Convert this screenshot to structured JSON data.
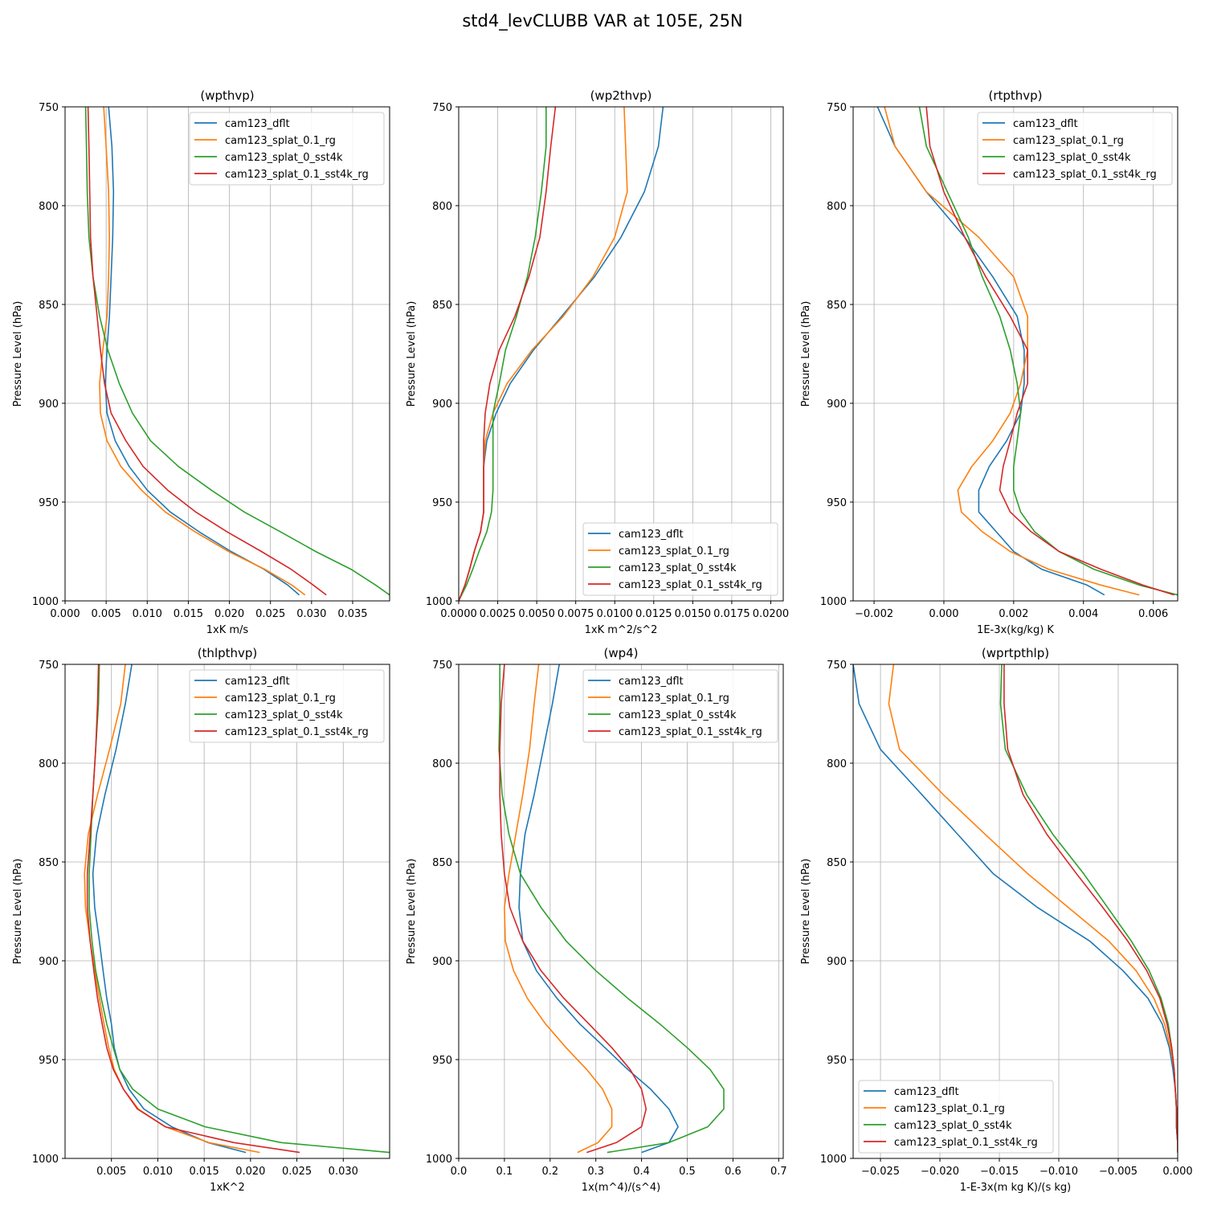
{
  "figure": {
    "title": "std4_levCLUBB VAR at 105E, 25N"
  },
  "series_names": [
    "cam123_dflt",
    "cam123_splat_0.1_rg",
    "cam123_splat_0_sst4k",
    "cam123_splat_0.1_sst4k_rg"
  ],
  "series_colors": [
    "#1f77b4",
    "#ff7f0e",
    "#2ca02c",
    "#d62728"
  ],
  "chart_data": [
    {
      "type": "line",
      "title": "(wpthvp)",
      "xlabel": "1xK m/s",
      "ylabel": "Pressure Level (hPa)",
      "xlim": [
        0,
        0.0395
      ],
      "ylim": [
        1000,
        750
      ],
      "xticks": [
        0,
        0.005,
        0.01,
        0.015,
        0.02,
        0.025,
        0.03,
        0.035
      ],
      "xtick_labels": [
        "0.000",
        "0.005",
        "0.010",
        "0.015",
        "0.020",
        "0.025",
        "0.030",
        "0.035"
      ],
      "yticks": [
        750,
        800,
        850,
        900,
        950,
        1000
      ],
      "legend_loc": "upper right",
      "levels": [
        750,
        770,
        793,
        816,
        836,
        856,
        873,
        890,
        905,
        919,
        932,
        944,
        955,
        965,
        975,
        984,
        992,
        997
      ],
      "series": [
        {
          "name": "cam123_dflt",
          "x": [
            0.0053,
            0.0057,
            0.0059,
            0.0058,
            0.0056,
            0.0054,
            0.0051,
            0.0049,
            0.0051,
            0.0061,
            0.0078,
            0.01,
            0.0128,
            0.0163,
            0.0202,
            0.0242,
            0.0271,
            0.0285
          ]
        },
        {
          "name": "cam123_splat_0.1_rg",
          "x": [
            0.0047,
            0.005,
            0.0053,
            0.0054,
            0.0053,
            0.0051,
            0.0046,
            0.0042,
            0.0043,
            0.0051,
            0.0068,
            0.0093,
            0.0122,
            0.0158,
            0.0199,
            0.0243,
            0.0276,
            0.0292
          ]
        },
        {
          "name": "cam123_splat_0_sst4k",
          "x": [
            0.0025,
            0.0026,
            0.0027,
            0.0029,
            0.0034,
            0.0042,
            0.0052,
            0.0066,
            0.0082,
            0.0104,
            0.0138,
            0.0178,
            0.0218,
            0.0262,
            0.0305,
            0.0348,
            0.0378,
            0.0395
          ]
        },
        {
          "name": "cam123_splat_0.1_sst4k_rg",
          "x": [
            0.0028,
            0.0029,
            0.003,
            0.0031,
            0.0034,
            0.0039,
            0.0043,
            0.0048,
            0.0056,
            0.0074,
            0.0095,
            0.0125,
            0.0159,
            0.0197,
            0.0239,
            0.0275,
            0.0302,
            0.0318
          ]
        }
      ]
    },
    {
      "type": "line",
      "title": "(wp2thvp)",
      "xlabel": "1xK m^2/s^2",
      "ylabel": "Pressure Level (hPa)",
      "xlim": [
        0,
        0.0208
      ],
      "ylim": [
        1000,
        750
      ],
      "xticks": [
        0,
        0.0025,
        0.005,
        0.0075,
        0.01,
        0.0125,
        0.015,
        0.0175,
        0.02
      ],
      "xtick_labels": [
        "0.0000",
        "0.0025",
        "0.0050",
        "0.0075",
        "0.0100",
        "0.0125",
        "0.0150",
        "0.0175",
        "0.0200"
      ],
      "yticks": [
        750,
        800,
        850,
        900,
        950,
        1000
      ],
      "legend_loc": "lower right",
      "levels": [
        750,
        770,
        793,
        816,
        836,
        856,
        873,
        890,
        905,
        919,
        932,
        944,
        955,
        965,
        975,
        984,
        992,
        1000
      ],
      "series": [
        {
          "name": "cam123_dflt",
          "x": [
            0.0131,
            0.0128,
            0.0119,
            0.0104,
            0.0087,
            0.0066,
            0.0048,
            0.0033,
            0.0024,
            0.0018,
            0.0016,
            0.0016,
            0.0016,
            0.0014,
            0.001,
            0.0007,
            0.0004,
            0
          ]
        },
        {
          "name": "cam123_splat_0.1_rg",
          "x": [
            0.0106,
            0.0107,
            0.0108,
            0.01,
            0.0086,
            0.0067,
            0.0047,
            0.0031,
            0.0022,
            0.0017,
            0.0016,
            0.0016,
            0.0016,
            0.0014,
            0.001,
            0.0007,
            0.0004,
            0
          ]
        },
        {
          "name": "cam123_splat_0_sst4k",
          "x": [
            0.0056,
            0.0056,
            0.0053,
            0.0049,
            0.0044,
            0.0037,
            0.003,
            0.0026,
            0.0022,
            0.0022,
            0.0022,
            0.0022,
            0.0021,
            0.0018,
            0.0013,
            0.0009,
            0.0005,
            0
          ]
        },
        {
          "name": "cam123_splat_0.1_sst4k_rg",
          "x": [
            0.0062,
            0.0059,
            0.0056,
            0.0052,
            0.0045,
            0.0036,
            0.0026,
            0.002,
            0.0017,
            0.0016,
            0.0016,
            0.0016,
            0.0016,
            0.0014,
            0.001,
            0.0007,
            0.0004,
            0
          ]
        }
      ]
    },
    {
      "type": "line",
      "title": "(rtpthvp)",
      "xlabel": "1E-3x(kg/kg) K",
      "ylabel": "Pressure Level (hPa)",
      "xlim": [
        -0.0026,
        0.0067
      ],
      "ylim": [
        1000,
        750
      ],
      "xticks": [
        -0.002,
        0,
        0.002,
        0.004,
        0.006
      ],
      "xtick_labels": [
        "−0.002",
        "0.000",
        "0.002",
        "0.004",
        "0.006"
      ],
      "yticks": [
        750,
        800,
        850,
        900,
        950,
        1000
      ],
      "legend_loc": "upper right",
      "levels": [
        750,
        770,
        793,
        816,
        836,
        856,
        873,
        890,
        905,
        919,
        932,
        944,
        955,
        965,
        975,
        984,
        992,
        997
      ],
      "series": [
        {
          "name": "cam123_dflt",
          "x": [
            -0.0019,
            -0.0014,
            -0.0005,
            0.0006,
            0.0014,
            0.0021,
            0.0023,
            0.0023,
            0.0022,
            0.0018,
            0.0013,
            0.001,
            0.001,
            0.0015,
            0.002,
            0.0028,
            0.0041,
            0.0046
          ]
        },
        {
          "name": "cam123_splat_0.1_rg",
          "x": [
            -0.0017,
            -0.0014,
            -0.0005,
            0.001,
            0.002,
            0.0024,
            0.0024,
            0.0022,
            0.0019,
            0.0014,
            0.0008,
            0.0004,
            0.0005,
            0.0011,
            0.0019,
            0.003,
            0.0045,
            0.0056
          ]
        },
        {
          "name": "cam123_splat_0_sst4k",
          "x": [
            -0.0007,
            -0.0005,
            0.0001,
            0.0007,
            0.0011,
            0.0016,
            0.0019,
            0.0021,
            0.0022,
            0.0021,
            0.002,
            0.002,
            0.0022,
            0.0026,
            0.0033,
            0.0043,
            0.0056,
            0.0067
          ]
        },
        {
          "name": "cam123_splat_0.1_sst4k_rg",
          "x": [
            -0.0005,
            -0.0004,
            0.0,
            0.0006,
            0.0012,
            0.0019,
            0.0024,
            0.0024,
            0.0021,
            0.0019,
            0.0017,
            0.0016,
            0.0019,
            0.0025,
            0.0033,
            0.0045,
            0.0057,
            0.0066
          ]
        }
      ]
    },
    {
      "type": "line",
      "title": "(thlpthvp)",
      "xlabel": "1xK^2",
      "ylabel": "Pressure Level (hPa)",
      "xlim": [
        0,
        0.035
      ],
      "ylim": [
        1000,
        750
      ],
      "xticks": [
        0.005,
        0.01,
        0.015,
        0.02,
        0.025,
        0.03
      ],
      "xtick_labels": [
        "0.005",
        "0.010",
        "0.015",
        "0.020",
        "0.025",
        "0.030"
      ],
      "yticks": [
        750,
        800,
        850,
        900,
        950,
        1000
      ],
      "legend_loc": "upper right",
      "levels": [
        750,
        770,
        793,
        816,
        836,
        856,
        873,
        890,
        905,
        919,
        932,
        944,
        955,
        965,
        975,
        984,
        992,
        997
      ],
      "series": [
        {
          "name": "cam123_dflt",
          "x": [
            0.0072,
            0.0065,
            0.0055,
            0.0043,
            0.0034,
            0.003,
            0.0032,
            0.0037,
            0.0041,
            0.0045,
            0.005,
            0.0053,
            0.0059,
            0.0069,
            0.0085,
            0.0115,
            0.0154,
            0.0195
          ]
        },
        {
          "name": "cam123_splat_0.1_rg",
          "x": [
            0.0065,
            0.006,
            0.0048,
            0.0035,
            0.0025,
            0.0021,
            0.0022,
            0.0027,
            0.0032,
            0.0037,
            0.0042,
            0.0047,
            0.0053,
            0.0063,
            0.0079,
            0.0108,
            0.0155,
            0.021
          ]
        },
        {
          "name": "cam123_splat_0_sst4k",
          "x": [
            0.0037,
            0.0036,
            0.0033,
            0.003,
            0.0028,
            0.0026,
            0.0026,
            0.0029,
            0.0033,
            0.0039,
            0.0045,
            0.0052,
            0.0059,
            0.0073,
            0.01,
            0.0151,
            0.0233,
            0.035
          ]
        },
        {
          "name": "cam123_splat_0.1_sst4k_rg",
          "x": [
            0.0036,
            0.0035,
            0.0033,
            0.003,
            0.0027,
            0.0024,
            0.0024,
            0.0027,
            0.0031,
            0.0035,
            0.004,
            0.0045,
            0.0052,
            0.0063,
            0.0078,
            0.0108,
            0.0182,
            0.0253
          ]
        }
      ]
    },
    {
      "type": "line",
      "title": "(wp4)",
      "xlabel": "1x(m^4)/(s^4)",
      "ylabel": "Pressure Level (hPa)",
      "xlim": [
        0,
        0.71
      ],
      "ylim": [
        1000,
        750
      ],
      "xticks": [
        0,
        0.1,
        0.2,
        0.3,
        0.4,
        0.5,
        0.6,
        0.7
      ],
      "xtick_labels": [
        "0.0",
        "0.1",
        "0.2",
        "0.3",
        "0.4",
        "0.5",
        "0.6",
        "0.7"
      ],
      "yticks": [
        750,
        800,
        850,
        900,
        950,
        1000
      ],
      "legend_loc": "upper right",
      "levels": [
        750,
        770,
        793,
        816,
        836,
        856,
        873,
        890,
        905,
        919,
        932,
        944,
        955,
        965,
        975,
        984,
        992,
        997
      ],
      "series": [
        {
          "name": "cam123_dflt",
          "x": [
            0.22,
            0.205,
            0.185,
            0.165,
            0.145,
            0.135,
            0.132,
            0.14,
            0.17,
            0.215,
            0.265,
            0.32,
            0.37,
            0.42,
            0.46,
            0.48,
            0.46,
            0.4
          ]
        },
        {
          "name": "cam123_splat_0.1_rg",
          "x": [
            0.175,
            0.165,
            0.155,
            0.14,
            0.125,
            0.11,
            0.1,
            0.102,
            0.12,
            0.15,
            0.19,
            0.235,
            0.28,
            0.315,
            0.335,
            0.335,
            0.305,
            0.26
          ]
        },
        {
          "name": "cam123_splat_0_sst4k",
          "x": [
            0.09,
            0.09,
            0.088,
            0.095,
            0.11,
            0.135,
            0.18,
            0.235,
            0.3,
            0.37,
            0.44,
            0.5,
            0.55,
            0.58,
            0.58,
            0.545,
            0.46,
            0.325
          ]
        },
        {
          "name": "cam123_splat_0.1_sst4k_rg",
          "x": [
            0.1,
            0.093,
            0.09,
            0.09,
            0.093,
            0.1,
            0.112,
            0.14,
            0.18,
            0.23,
            0.285,
            0.335,
            0.375,
            0.4,
            0.41,
            0.4,
            0.345,
            0.28
          ]
        }
      ]
    },
    {
      "type": "line",
      "title": "(wprtpthlp)",
      "xlabel": "1-E-3x(m kg K)/(s kg)",
      "ylabel": "Pressure Level (hPa)",
      "xlim": [
        -0.0273,
        0.0
      ],
      "ylim": [
        1000,
        750
      ],
      "xticks": [
        -0.025,
        -0.02,
        -0.015,
        -0.01,
        -0.005,
        0
      ],
      "xtick_labels": [
        "−0.025",
        "−0.020",
        "−0.015",
        "−0.010",
        "−0.005",
        "0.000"
      ],
      "yticks": [
        750,
        800,
        850,
        900,
        950,
        1000
      ],
      "legend_loc": "lower left",
      "levels": [
        750,
        770,
        793,
        816,
        836,
        856,
        873,
        890,
        905,
        919,
        932,
        944,
        955,
        965,
        975,
        984,
        992,
        997
      ],
      "series": [
        {
          "name": "cam123_dflt",
          "x": [
            -0.0273,
            -0.0268,
            -0.025,
            -0.0215,
            -0.0185,
            -0.0155,
            -0.0118,
            -0.0074,
            -0.0046,
            -0.0025,
            -0.0013,
            -0.0007,
            -0.0004,
            -0.0002,
            -0.0001,
            -0.0001,
            0,
            0
          ]
        },
        {
          "name": "cam123_splat_0.1_rg",
          "x": [
            -0.0239,
            -0.0243,
            -0.0234,
            -0.0197,
            -0.0162,
            -0.0126,
            -0.0092,
            -0.0058,
            -0.0035,
            -0.002,
            -0.0011,
            -0.0006,
            -0.0003,
            -0.0002,
            -0.0001,
            -0.0001,
            0,
            0
          ]
        },
        {
          "name": "cam123_splat_0_sst4k",
          "x": [
            -0.0148,
            -0.0149,
            -0.0145,
            -0.0127,
            -0.0105,
            -0.0079,
            -0.0059,
            -0.0039,
            -0.0024,
            -0.0014,
            -0.0008,
            -0.0005,
            -0.0003,
            -0.0002,
            -0.0001,
            -0.0001,
            0,
            0
          ]
        },
        {
          "name": "cam123_splat_0.1_sst4k_rg",
          "x": [
            -0.0146,
            -0.0146,
            -0.0143,
            -0.013,
            -0.011,
            -0.0085,
            -0.0063,
            -0.0042,
            -0.0026,
            -0.0015,
            -0.0009,
            -0.0005,
            -0.0003,
            -0.0002,
            -0.0001,
            -0.0001,
            0,
            0
          ]
        }
      ]
    }
  ]
}
